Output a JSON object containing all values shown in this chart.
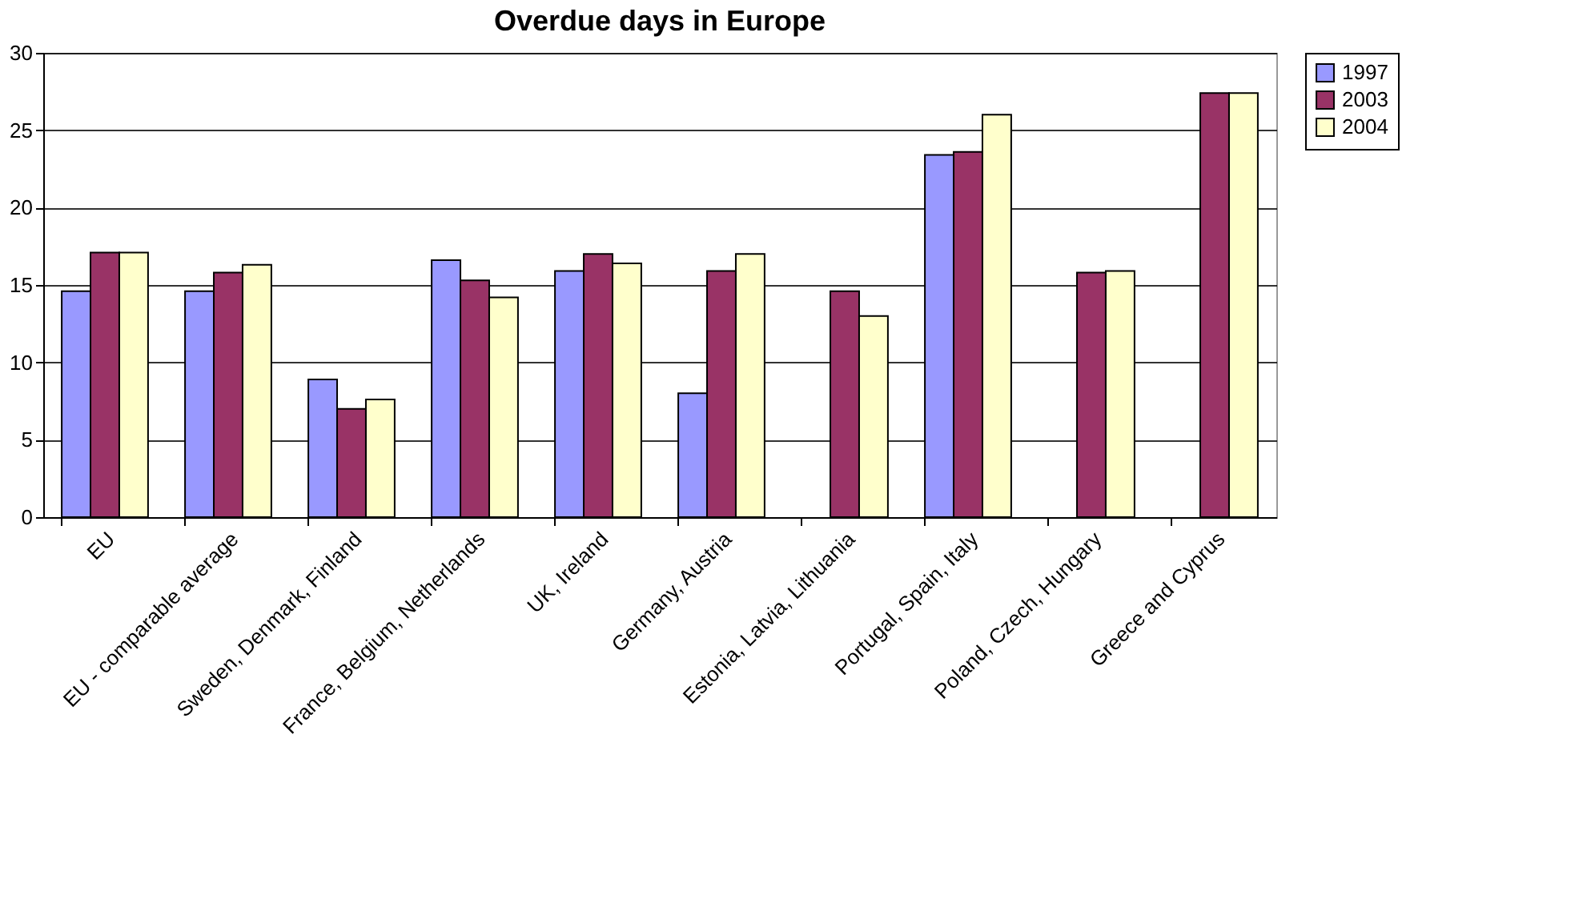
{
  "chart_data": {
    "type": "bar",
    "title": "Overdue days in Europe",
    "categories": [
      "EU",
      "EU - comparable average",
      "Sweden, Denmark, Finland",
      "France, Belgium, Netherlands",
      "UK, Ireland",
      "Germany, Austria",
      "Estonia, Latvia, Lithuania",
      "Portugal, Spain, Italy",
      "Poland, Czech, Hungary",
      "Greece and Cyprus"
    ],
    "series": [
      {
        "name": "1997",
        "color": "#9999ff",
        "values": [
          14.6,
          14.6,
          8.9,
          16.6,
          15.9,
          8.0,
          null,
          23.4,
          null,
          null
        ]
      },
      {
        "name": "2003",
        "color": "#993366",
        "values": [
          17.1,
          15.8,
          7.0,
          15.3,
          17.0,
          15.9,
          14.6,
          23.6,
          15.8,
          27.4
        ]
      },
      {
        "name": "2004",
        "color": "#ffffcc",
        "values": [
          17.1,
          16.3,
          7.6,
          14.2,
          16.4,
          17.0,
          13.0,
          26.0,
          15.9,
          27.4
        ]
      }
    ],
    "ylim": [
      0,
      30
    ],
    "yticks": [
      0,
      5,
      10,
      15,
      20,
      25,
      30
    ],
    "grid": "y",
    "legend": "right"
  }
}
